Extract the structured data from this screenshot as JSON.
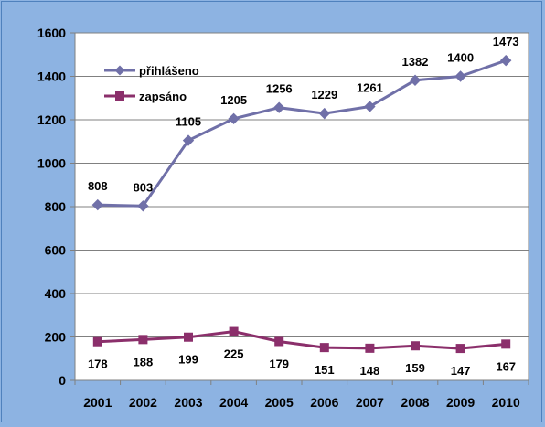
{
  "chart_data": {
    "type": "line",
    "title": "",
    "xlabel": "",
    "ylabel": "",
    "categories": [
      "2001",
      "2002",
      "2003",
      "2004",
      "2005",
      "2006",
      "2007",
      "2008",
      "2009",
      "2010"
    ],
    "ylim": [
      0,
      1600
    ],
    "yticks": [
      0,
      200,
      400,
      600,
      800,
      1000,
      1200,
      1400,
      1600
    ],
    "ytick_labels": [
      "0",
      "200",
      "400",
      "600",
      "800",
      "1000",
      "1200",
      "1400",
      "1600"
    ],
    "grid": true,
    "legend_position": "top-left",
    "series": [
      {
        "name": "přihlášeno",
        "color": "#7070a8",
        "marker": "diamond",
        "values": [
          808,
          803,
          1105,
          1205,
          1256,
          1229,
          1261,
          1382,
          1400,
          1473
        ],
        "labels": [
          "808",
          "803",
          "1105",
          "1205",
          "1256",
          "1229",
          "1261",
          "1382",
          "1400",
          "1473"
        ],
        "label_position": "above"
      },
      {
        "name": "zapsáno",
        "color": "#8b2f6b",
        "marker": "square",
        "values": [
          178,
          188,
          199,
          225,
          179,
          151,
          148,
          159,
          147,
          167
        ],
        "labels": [
          "178",
          "188",
          "199",
          "225",
          "179",
          "151",
          "148",
          "159",
          "147",
          "167"
        ],
        "label_position": "below"
      }
    ]
  }
}
